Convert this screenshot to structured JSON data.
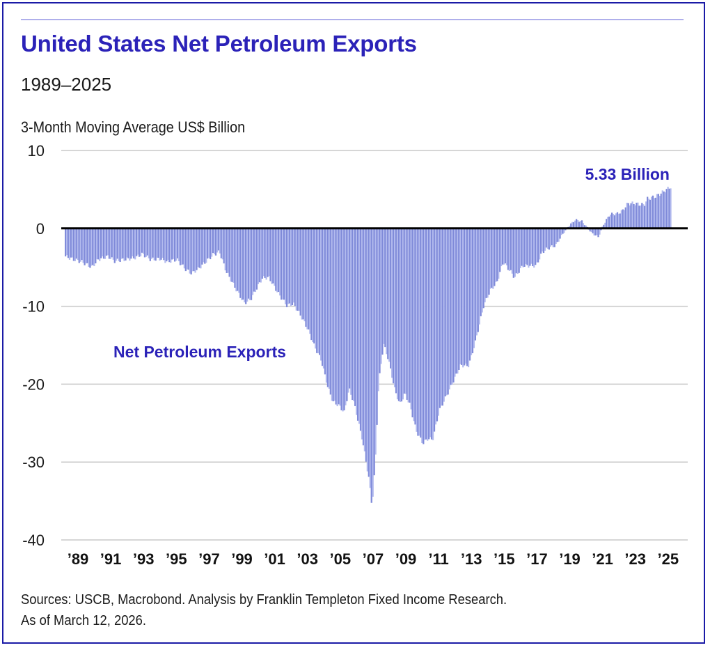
{
  "header": {
    "title": "United States Net Petroleum Exports",
    "subtitle": "1989–2025",
    "unit_label": "3-Month Moving Average US$ Billion"
  },
  "footer": {
    "sources": "Sources: USCB, Macrobond. Analysis by Franklin Templeton Fixed Income Research.",
    "as_of": "As of March 12, 2026."
  },
  "colors": {
    "title": "#2b22b8",
    "bar": "#7f8ad9",
    "bar_light": "#b3bbee",
    "zero_line": "#000000",
    "grid": "#c8c8c8",
    "border": "#1a1aa6"
  },
  "chart_data": {
    "type": "bar",
    "title": "United States Net Petroleum Exports",
    "subtitle": "1989–2025",
    "ylabel": "3-Month Moving Average US$ Billion",
    "xlabel": "",
    "frequency": "monthly",
    "x_range": [
      1989.0,
      2025.9
    ],
    "ylim": [
      -40,
      10
    ],
    "grid": true,
    "yticks": [
      10,
      0,
      -10,
      -20,
      -30,
      -40
    ],
    "ytick_labels": [
      "10",
      "0",
      "-10",
      "-20",
      "-30",
      "-40"
    ],
    "xticks": [
      1989,
      1991,
      1993,
      1995,
      1997,
      1999,
      2001,
      2003,
      2005,
      2007,
      2009,
      2011,
      2013,
      2015,
      2017,
      2019,
      2021,
      2023,
      2025
    ],
    "xtick_labels": [
      "’89",
      "’91",
      "’93",
      "’95",
      "’97",
      "’99",
      "’01",
      "’03",
      "’05",
      "’07",
      "’09",
      "’11",
      "’13",
      "’15",
      "’17",
      "’19",
      "’21",
      "’23",
      "’25"
    ],
    "series": [
      {
        "name": "Net Petroleum Exports",
        "points": [
          [
            1989.0,
            -3.6
          ],
          [
            1989.5,
            -4.0
          ],
          [
            1990.0,
            -4.3
          ],
          [
            1990.6,
            -5.0
          ],
          [
            1991.0,
            -4.0
          ],
          [
            1991.6,
            -3.6
          ],
          [
            1992.0,
            -4.2
          ],
          [
            1992.6,
            -4.0
          ],
          [
            1993.2,
            -3.8
          ],
          [
            1993.7,
            -3.3
          ],
          [
            1994.2,
            -4.0
          ],
          [
            1994.8,
            -3.9
          ],
          [
            1995.2,
            -4.3
          ],
          [
            1995.8,
            -4.0
          ],
          [
            1996.3,
            -5.2
          ],
          [
            1996.7,
            -5.8
          ],
          [
            1997.2,
            -5.0
          ],
          [
            1997.7,
            -4.0
          ],
          [
            1998.0,
            -3.4
          ],
          [
            1998.4,
            -3.0
          ],
          [
            1998.8,
            -5.5
          ],
          [
            1999.4,
            -7.8
          ],
          [
            1999.9,
            -9.6
          ],
          [
            2000.3,
            -9.1
          ],
          [
            2001.0,
            -6.4
          ],
          [
            2001.4,
            -6.3
          ],
          [
            2002.0,
            -8.4
          ],
          [
            2002.5,
            -9.9
          ],
          [
            2002.9,
            -9.7
          ],
          [
            2003.3,
            -11.0
          ],
          [
            2003.8,
            -13.0
          ],
          [
            2004.2,
            -15.2
          ],
          [
            2004.6,
            -16.9
          ],
          [
            2005.0,
            -20.3
          ],
          [
            2005.3,
            -22.2
          ],
          [
            2005.7,
            -22.8
          ],
          [
            2006.0,
            -23.6
          ],
          [
            2006.3,
            -20.6
          ],
          [
            2006.6,
            -22.4
          ],
          [
            2007.1,
            -27.0
          ],
          [
            2007.5,
            -32.0
          ],
          [
            2007.7,
            -35.7
          ],
          [
            2007.9,
            -30.0
          ],
          [
            2008.1,
            -20.0
          ],
          [
            2008.4,
            -14.8
          ],
          [
            2008.7,
            -16.8
          ],
          [
            2009.1,
            -20.8
          ],
          [
            2009.4,
            -22.6
          ],
          [
            2009.7,
            -21.2
          ],
          [
            2010.0,
            -22.6
          ],
          [
            2010.4,
            -26.0
          ],
          [
            2010.8,
            -27.6
          ],
          [
            2011.1,
            -27.0
          ],
          [
            2011.4,
            -27.1
          ],
          [
            2011.8,
            -23.4
          ],
          [
            2012.4,
            -20.8
          ],
          [
            2013.1,
            -17.6
          ],
          [
            2013.6,
            -17.6
          ],
          [
            2014.0,
            -14.6
          ],
          [
            2014.5,
            -10.0
          ],
          [
            2014.9,
            -8.0
          ],
          [
            2015.3,
            -7.0
          ],
          [
            2015.7,
            -4.3
          ],
          [
            2016.1,
            -5.4
          ],
          [
            2016.4,
            -6.3
          ],
          [
            2016.9,
            -4.8
          ],
          [
            2017.7,
            -4.8
          ],
          [
            2018.1,
            -3.0
          ],
          [
            2018.5,
            -2.5
          ],
          [
            2018.9,
            -2.2
          ],
          [
            2019.3,
            -0.8
          ],
          [
            2019.7,
            0.3
          ],
          [
            2020.1,
            1.1
          ],
          [
            2020.5,
            0.9
          ],
          [
            2020.8,
            0.2
          ],
          [
            2021.1,
            -0.6
          ],
          [
            2021.5,
            -1.1
          ],
          [
            2021.8,
            0.4
          ],
          [
            2022.2,
            1.8
          ],
          [
            2022.7,
            1.9
          ],
          [
            2023.0,
            2.3
          ],
          [
            2023.3,
            3.2
          ],
          [
            2023.7,
            3.2
          ],
          [
            2024.3,
            3.0
          ],
          [
            2024.5,
            3.8
          ],
          [
            2025.0,
            4.1
          ],
          [
            2025.4,
            4.6
          ],
          [
            2025.9,
            5.33
          ]
        ]
      }
    ],
    "annotations": [
      {
        "text": "5.33 Billion",
        "target": [
          2025.9,
          5.33
        ]
      },
      {
        "text": "Net Petroleum Exports",
        "target": "series-label"
      }
    ]
  }
}
